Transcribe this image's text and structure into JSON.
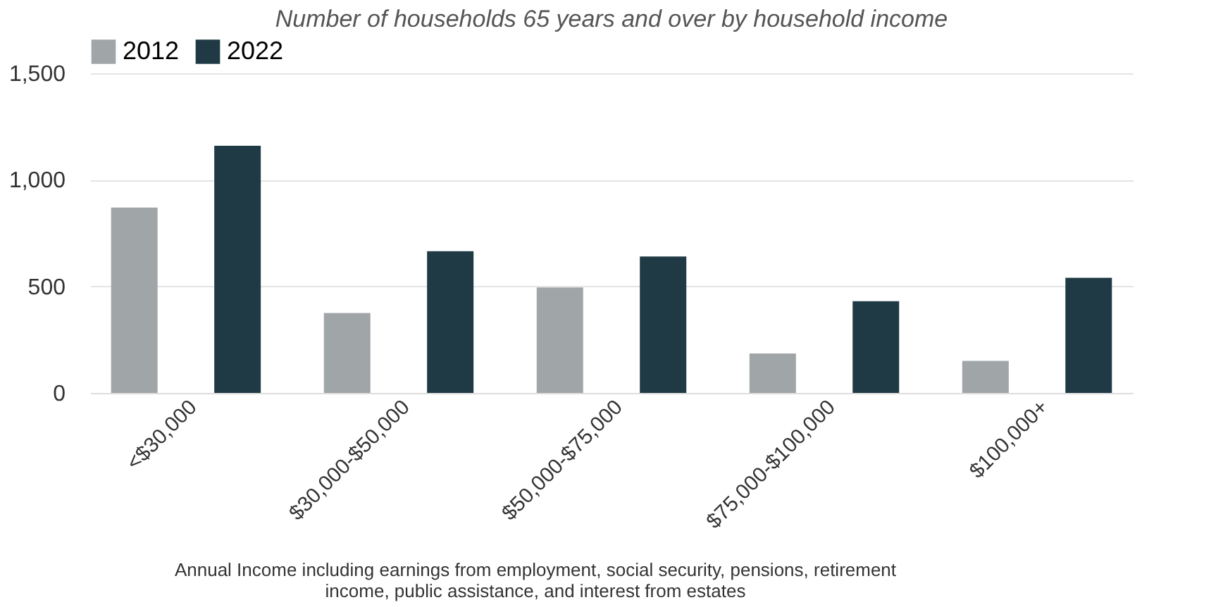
{
  "chart_data": {
    "type": "bar",
    "title": "Number of households 65 years and over by household income",
    "categories": [
      "<$30,000",
      "$30,000-$50,000",
      "$50,000-$75,000",
      "$75,000-$100,000",
      "$100,000+"
    ],
    "series": [
      {
        "name": "2012",
        "color": "#a0a5a8",
        "values": [
          870,
          375,
          495,
          185,
          150
        ]
      },
      {
        "name": "2022",
        "color": "#1f3a45",
        "values": [
          1160,
          665,
          640,
          430,
          540
        ]
      }
    ],
    "ylim": [
      0,
      1500
    ],
    "yticks": [
      0,
      500,
      {
        "value": 1000,
        "label": "1,000"
      },
      {
        "value": 1500,
        "label": "1,500"
      }
    ],
    "grid": "y",
    "legend": "top",
    "annotations": [
      "Annual Income including earnings from employment, social security, pensions, retirement income, public assistance, and interest from estates"
    ]
  }
}
